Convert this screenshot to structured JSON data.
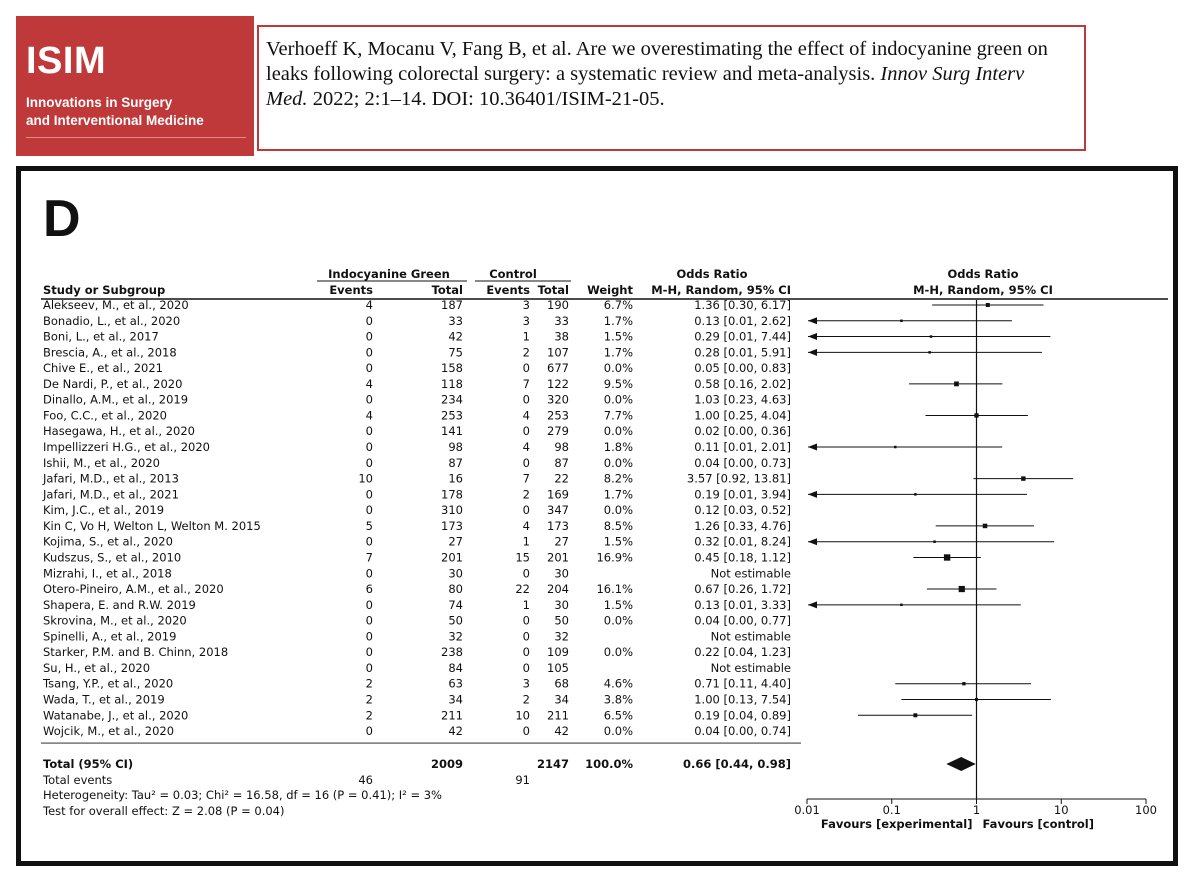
{
  "logo": {
    "name": "ISIM",
    "line1": "Innovations in Surgery",
    "line2": "and Interventional Medicine"
  },
  "citation": {
    "part1": "Verhoeff K, Mocanu V, Fang B, et al. Are we overestimating the effect of indocyanine green on leaks following colorectal surgery: a systematic review and meta-analysis.",
    "journal": "Innov Surg Interv Med.",
    "part2": "2022; 2:1–14. DOI: 10.36401/ISIM-21-05."
  },
  "chart_data": {
    "type": "forest",
    "panel_label": "D",
    "headers": {
      "group_exp": "Indocyanine Green",
      "group_ctl": "Control",
      "study": "Study or Subgroup",
      "events": "Events",
      "total": "Total",
      "weight": "Weight",
      "or_title": "Odds Ratio",
      "or_method": "M-H, Random, 95% CI"
    },
    "studies": [
      {
        "name": "Alekseev, M., et al., 2020",
        "e_ev": "4",
        "e_tot": "187",
        "c_ev": "3",
        "c_tot": "190",
        "weight": "6.7%",
        "ci": "1.36 [0.30, 6.17]",
        "or": 1.36,
        "lo": 0.3,
        "hi": 6.17
      },
      {
        "name": "Bonadio, L., et al., 2020",
        "e_ev": "0",
        "e_tot": "33",
        "c_ev": "3",
        "c_tot": "33",
        "weight": "1.7%",
        "ci": "0.13 [0.01, 2.62]",
        "or": 0.13,
        "lo": 0.01,
        "hi": 2.62
      },
      {
        "name": "Boni, L., et al., 2017",
        "e_ev": "0",
        "e_tot": "42",
        "c_ev": "1",
        "c_tot": "38",
        "weight": "1.5%",
        "ci": "0.29 [0.01, 7.44]",
        "or": 0.29,
        "lo": 0.01,
        "hi": 7.44
      },
      {
        "name": "Brescia, A., et al., 2018",
        "e_ev": "0",
        "e_tot": "75",
        "c_ev": "2",
        "c_tot": "107",
        "weight": "1.7%",
        "ci": "0.28 [0.01, 5.91]",
        "or": 0.28,
        "lo": 0.01,
        "hi": 5.91
      },
      {
        "name": "Chive E., et al., 2021",
        "e_ev": "0",
        "e_tot": "158",
        "c_ev": "0",
        "c_tot": "677",
        "weight": "0.0%",
        "ci": "0.05 [0.00, 0.83]",
        "or": null,
        "lo": null,
        "hi": null
      },
      {
        "name": "De Nardi, P., et al., 2020",
        "e_ev": "4",
        "e_tot": "118",
        "c_ev": "7",
        "c_tot": "122",
        "weight": "9.5%",
        "ci": "0.58 [0.16, 2.02]",
        "or": 0.58,
        "lo": 0.16,
        "hi": 2.02
      },
      {
        "name": "Dinallo, A.M., et al., 2019",
        "e_ev": "0",
        "e_tot": "234",
        "c_ev": "0",
        "c_tot": "320",
        "weight": "0.0%",
        "ci": "1.03 [0.23, 4.63]",
        "or": null,
        "lo": null,
        "hi": null
      },
      {
        "name": "Foo, C.C., et al., 2020",
        "e_ev": "4",
        "e_tot": "253",
        "c_ev": "4",
        "c_tot": "253",
        "weight": "7.7%",
        "ci": "1.00 [0.25, 4.04]",
        "or": 1.0,
        "lo": 0.25,
        "hi": 4.04
      },
      {
        "name": "Hasegawa, H., et al., 2020",
        "e_ev": "0",
        "e_tot": "141",
        "c_ev": "0",
        "c_tot": "279",
        "weight": "0.0%",
        "ci": "0.02 [0.00, 0.36]",
        "or": null,
        "lo": null,
        "hi": null
      },
      {
        "name": "Impellizzeri H.G., et al., 2020",
        "e_ev": "0",
        "e_tot": "98",
        "c_ev": "4",
        "c_tot": "98",
        "weight": "1.8%",
        "ci": "0.11 [0.01, 2.01]",
        "or": 0.11,
        "lo": 0.01,
        "hi": 2.01
      },
      {
        "name": "Ishii, M., et al., 2020",
        "e_ev": "0",
        "e_tot": "87",
        "c_ev": "0",
        "c_tot": "87",
        "weight": "0.0%",
        "ci": "0.04 [0.00, 0.73]",
        "or": null,
        "lo": null,
        "hi": null
      },
      {
        "name": "Jafari, M.D., et al., 2013",
        "e_ev": "10",
        "e_tot": "16",
        "c_ev": "7",
        "c_tot": "22",
        "weight": "8.2%",
        "ci": "3.57 [0.92, 13.81]",
        "or": 3.57,
        "lo": 0.92,
        "hi": 13.81
      },
      {
        "name": "Jafari, M.D., et al., 2021",
        "e_ev": "0",
        "e_tot": "178",
        "c_ev": "2",
        "c_tot": "169",
        "weight": "1.7%",
        "ci": "0.19 [0.01, 3.94]",
        "or": 0.19,
        "lo": 0.01,
        "hi": 3.94
      },
      {
        "name": "Kim, J.C., et al., 2019",
        "e_ev": "0",
        "e_tot": "310",
        "c_ev": "0",
        "c_tot": "347",
        "weight": "0.0%",
        "ci": "0.12 [0.03, 0.52]",
        "or": null,
        "lo": null,
        "hi": null
      },
      {
        "name": "Kin C, Vo H, Welton L, Welton M. 2015",
        "e_ev": "5",
        "e_tot": "173",
        "c_ev": "4",
        "c_tot": "173",
        "weight": "8.5%",
        "ci": "1.26 [0.33, 4.76]",
        "or": 1.26,
        "lo": 0.33,
        "hi": 4.76
      },
      {
        "name": "Kojima, S., et al., 2020",
        "e_ev": "0",
        "e_tot": "27",
        "c_ev": "1",
        "c_tot": "27",
        "weight": "1.5%",
        "ci": "0.32 [0.01, 8.24]",
        "or": 0.32,
        "lo": 0.01,
        "hi": 8.24
      },
      {
        "name": "Kudszus, S., et al., 2010",
        "e_ev": "7",
        "e_tot": "201",
        "c_ev": "15",
        "c_tot": "201",
        "weight": "16.9%",
        "ci": "0.45 [0.18, 1.12]",
        "or": 0.45,
        "lo": 0.18,
        "hi": 1.12
      },
      {
        "name": "Mizrahi, I., et al., 2018",
        "e_ev": "0",
        "e_tot": "30",
        "c_ev": "0",
        "c_tot": "30",
        "weight": "",
        "ci": "Not estimable",
        "or": null,
        "lo": null,
        "hi": null
      },
      {
        "name": "Otero-Pineiro, A.M., et al., 2020",
        "e_ev": "6",
        "e_tot": "80",
        "c_ev": "22",
        "c_tot": "204",
        "weight": "16.1%",
        "ci": "0.67 [0.26, 1.72]",
        "or": 0.67,
        "lo": 0.26,
        "hi": 1.72
      },
      {
        "name": "Shapera, E. and R.W. 2019",
        "e_ev": "0",
        "e_tot": "74",
        "c_ev": "1",
        "c_tot": "30",
        "weight": "1.5%",
        "ci": "0.13 [0.01, 3.33]",
        "or": 0.13,
        "lo": 0.01,
        "hi": 3.33
      },
      {
        "name": "Skrovina, M., et al., 2020",
        "e_ev": "0",
        "e_tot": "50",
        "c_ev": "0",
        "c_tot": "50",
        "weight": "0.0%",
        "ci": "0.04 [0.00, 0.77]",
        "or": null,
        "lo": null,
        "hi": null
      },
      {
        "name": "Spinelli, A., et al., 2019",
        "e_ev": "0",
        "e_tot": "32",
        "c_ev": "0",
        "c_tot": "32",
        "weight": "",
        "ci": "Not estimable",
        "or": null,
        "lo": null,
        "hi": null
      },
      {
        "name": "Starker, P.M. and B. Chinn, 2018",
        "e_ev": "0",
        "e_tot": "238",
        "c_ev": "0",
        "c_tot": "109",
        "weight": "0.0%",
        "ci": "0.22 [0.04, 1.23]",
        "or": null,
        "lo": null,
        "hi": null
      },
      {
        "name": "Su, H., et al., 2020",
        "e_ev": "0",
        "e_tot": "84",
        "c_ev": "0",
        "c_tot": "105",
        "weight": "",
        "ci": "Not estimable",
        "or": null,
        "lo": null,
        "hi": null
      },
      {
        "name": "Tsang, Y.P., et al., 2020",
        "e_ev": "2",
        "e_tot": "63",
        "c_ev": "3",
        "c_tot": "68",
        "weight": "4.6%",
        "ci": "0.71 [0.11, 4.40]",
        "or": 0.71,
        "lo": 0.11,
        "hi": 4.4
      },
      {
        "name": "Wada, T., et al., 2019",
        "e_ev": "2",
        "e_tot": "34",
        "c_ev": "2",
        "c_tot": "34",
        "weight": "3.8%",
        "ci": "1.00 [0.13, 7.54]",
        "or": 1.0,
        "lo": 0.13,
        "hi": 7.54
      },
      {
        "name": "Watanabe, J., et al., 2020",
        "e_ev": "2",
        "e_tot": "211",
        "c_ev": "10",
        "c_tot": "211",
        "weight": "6.5%",
        "ci": "0.19 [0.04, 0.89]",
        "or": 0.19,
        "lo": 0.04,
        "hi": 0.89
      },
      {
        "name": "Wojcik, M., et al., 2020",
        "e_ev": "0",
        "e_tot": "42",
        "c_ev": "0",
        "c_tot": "42",
        "weight": "0.0%",
        "ci": "0.04 [0.00, 0.74]",
        "or": null,
        "lo": null,
        "hi": null
      }
    ],
    "total": {
      "label": "Total (95% CI)",
      "e_tot": "2009",
      "c_tot": "2147",
      "weight": "100.0%",
      "ci": "0.66 [0.44, 0.98]",
      "or": 0.66,
      "lo": 0.44,
      "hi": 0.98
    },
    "total_events": {
      "label": "Total events",
      "e_ev": "46",
      "c_ev": "91"
    },
    "heterogeneity": "Heterogeneity: Tau² = 0.03; Chi² = 16.58, df = 16 (P = 0.41); I² = 3%",
    "overall_effect": "Test for overall effect: Z = 2.08 (P = 0.04)",
    "x_axis": {
      "scale": "log",
      "range": [
        0.01,
        100
      ],
      "ticks": [
        "0.01",
        "0.1",
        "1",
        "10",
        "100"
      ],
      "tick_values": [
        0.01,
        0.1,
        1,
        10,
        100
      ]
    },
    "favours_left": "Favours [experimental]",
    "favours_right": "Favours [control]"
  }
}
